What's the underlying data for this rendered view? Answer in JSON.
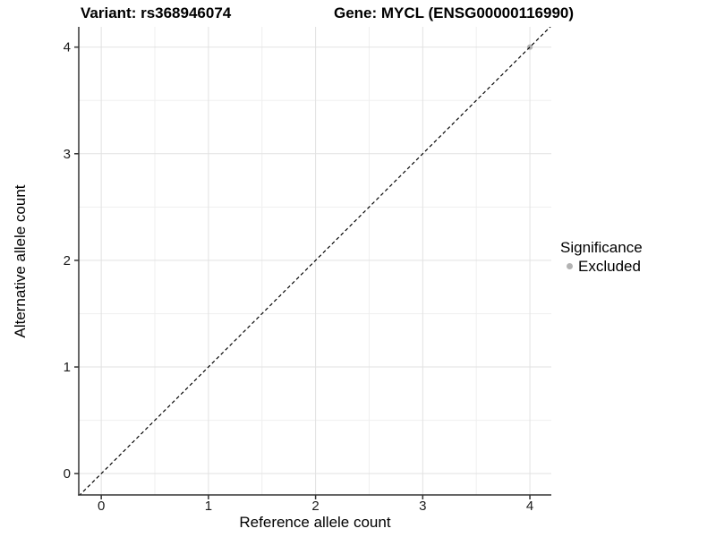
{
  "titles": {
    "left": "Variant: rs368946074",
    "right": "Gene: MYCL (ENSG00000116990)"
  },
  "chart_data": {
    "type": "scatter",
    "xlabel": "Reference allele count",
    "ylabel": "Alternative allele count",
    "xlim": [
      -0.21,
      4.2
    ],
    "ylim": [
      -0.2,
      4.19
    ],
    "xticks": [
      0,
      1,
      2,
      3,
      4
    ],
    "yticks": [
      0,
      1,
      2,
      3,
      4
    ],
    "minor_step": 0.5,
    "grid": {
      "major_color": "#e2e2e2",
      "minor_color": "#efefef",
      "visible": true
    },
    "axis_color": "#333333",
    "tick_label_color": "#1a1a1a",
    "points": [
      {
        "x": 4,
        "y": 4,
        "significance": "Excluded"
      }
    ],
    "point_color": "#b3b3b3",
    "abline": {
      "slope": 1,
      "intercept": 0,
      "style": "dashed",
      "color": "#000000"
    },
    "legend": {
      "title": "Significance",
      "position": "right",
      "items": [
        {
          "label": "Excluded",
          "color": "#b3b3b3"
        }
      ]
    }
  }
}
